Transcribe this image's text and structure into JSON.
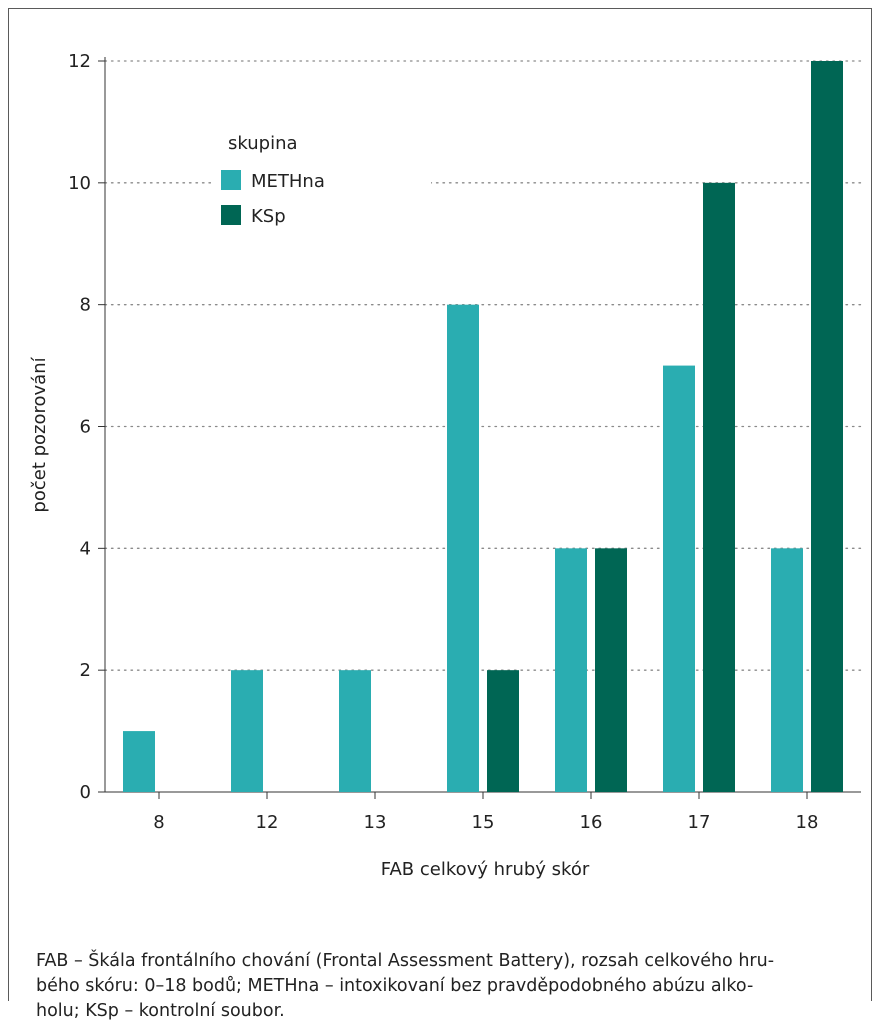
{
  "chart_data": {
    "type": "bar",
    "xlabel": "FAB celkový hrubý skór",
    "ylabel": "počet pozorování",
    "ylim": [
      0,
      12
    ],
    "yticks": [
      0,
      2,
      4,
      6,
      8,
      10,
      12
    ],
    "categories": [
      "8",
      "12",
      "13",
      "15",
      "16",
      "17",
      "18"
    ],
    "series": [
      {
        "name": "METHna",
        "color": "#2aadb1",
        "values": [
          1,
          2,
          2,
          8,
          4,
          7,
          4
        ]
      },
      {
        "name": "KSp",
        "color": "#006654",
        "values": [
          0,
          0,
          0,
          2,
          4,
          10,
          12
        ]
      }
    ],
    "legend": {
      "title": "skupina",
      "placement": "top-left"
    },
    "grid": "horizontal-dotted"
  },
  "caption": {
    "lines": [
      "FAB – Škála frontálního chování (Frontal Assessment Battery), rozsah celkového hru-",
      "bého skóru: 0–18 bodů; METHna – intoxikovaní bez pravděpodobného abúzu alko-",
      "holu; KSp – kontrolní soubor."
    ]
  }
}
